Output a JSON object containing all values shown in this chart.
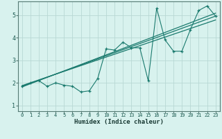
{
  "xlabel": "Humidex (Indice chaleur)",
  "ylabel": "",
  "bg_color": "#d8f2ee",
  "grid_color": "#b8d8d4",
  "line_color": "#1a7a6e",
  "xlim": [
    -0.5,
    23.5
  ],
  "ylim": [
    0.75,
    5.6
  ],
  "xticks": [
    0,
    1,
    2,
    3,
    4,
    5,
    6,
    7,
    8,
    9,
    10,
    11,
    12,
    13,
    14,
    15,
    16,
    17,
    18,
    19,
    20,
    21,
    22,
    23
  ],
  "yticks": [
    1,
    2,
    3,
    4,
    5
  ],
  "scatter_x": [
    0,
    1,
    2,
    3,
    4,
    5,
    6,
    7,
    8,
    9,
    10,
    11,
    12,
    13,
    14,
    15,
    16,
    17,
    18,
    19,
    20,
    21,
    22,
    23
  ],
  "scatter_y": [
    1.85,
    2.0,
    2.1,
    1.85,
    2.0,
    1.9,
    1.85,
    1.6,
    1.65,
    2.2,
    3.5,
    3.45,
    3.8,
    3.55,
    3.55,
    2.1,
    5.3,
    3.9,
    3.4,
    3.4,
    4.35,
    5.2,
    5.4,
    4.95
  ],
  "reg_lines": [
    {
      "x": [
        0,
        23
      ],
      "y": [
        1.85,
        4.95
      ]
    },
    {
      "x": [
        0,
        23
      ],
      "y": [
        1.82,
        5.08
      ]
    },
    {
      "x": [
        0,
        23
      ],
      "y": [
        1.88,
        4.78
      ]
    }
  ]
}
